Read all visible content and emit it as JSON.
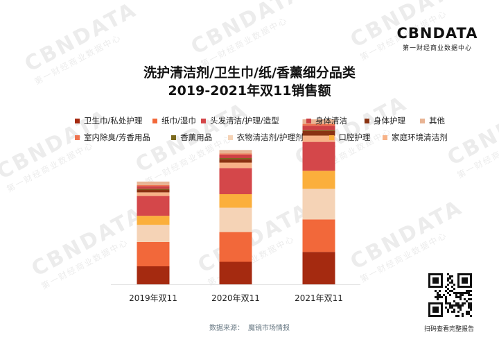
{
  "logo": {
    "name": "CBNDATA",
    "subtitle": "第一财经商业数据中心"
  },
  "watermark": {
    "text": "CBNDATA",
    "subtext": "第一财经商业数据中心"
  },
  "title_line1": "洗护清洁剂/卫生巾/纸/香薰细分品类",
  "title_line2": "2019-2021年双11销售额",
  "source": {
    "label": "数据来源：",
    "value": "魔镜市场情报"
  },
  "qr_caption": "扫码查看完整报告",
  "colors": {
    "卫生巾/私处护理": "#a52a10",
    "纸巾/湿巾": "#f2683a",
    "头发清洁/护理/造型": "#d4474a",
    "身体清洁": "#cd4145",
    "身体护理": "#8a3212",
    "其他": "#e8b494",
    "室内除臭/芳香用品": "#ef7450",
    "香薰用品": "#7b6a1e",
    "衣物清洁剂/护理剂": "#f5d3b6",
    "口腔护理": "#fbaf3c",
    "家庭环境清洁剂": "#f7b287"
  },
  "chart_data": {
    "type": "bar",
    "stacked": true,
    "categories": [
      "2019年双11",
      "2020年双11",
      "2021年双11"
    ],
    "legend_position": "top",
    "y_axis_visible": false,
    "series": [
      {
        "name": "卫生巾/私处护理",
        "values": [
          20,
          25,
          36
        ]
      },
      {
        "name": "纸巾/湿巾",
        "values": [
          27,
          33,
          36
        ]
      },
      {
        "name": "衣物清洁剂/护理剂",
        "values": [
          19,
          27,
          34
        ]
      },
      {
        "name": "口腔护理",
        "values": [
          10,
          15,
          20
        ]
      },
      {
        "name": "头发清洁/护理/造型",
        "values": [
          22,
          29,
          32
        ]
      },
      {
        "name": "家庭环境清洁剂",
        "values": [
          4,
          6,
          7
        ]
      },
      {
        "name": "身体护理",
        "values": [
          3,
          4,
          5
        ]
      },
      {
        "name": "香薰用品",
        "values": [
          1,
          1,
          1
        ]
      },
      {
        "name": "身体清洁",
        "values": [
          3,
          4,
          5
        ]
      },
      {
        "name": "室内除臭/芳香用品",
        "values": [
          1,
          1,
          2
        ]
      },
      {
        "name": "其他",
        "values": [
          4,
          4,
          5
        ]
      }
    ],
    "legend_order": [
      "卫生巾/私处护理",
      "纸巾/湿巾",
      "头发清洁/护理/造型",
      "身体清洁",
      "身体护理",
      "其他",
      "室内除臭/芳香用品",
      "香薰用品",
      "衣物清洁剂/护理剂",
      "口腔护理",
      "家庭环境清洁剂"
    ]
  }
}
